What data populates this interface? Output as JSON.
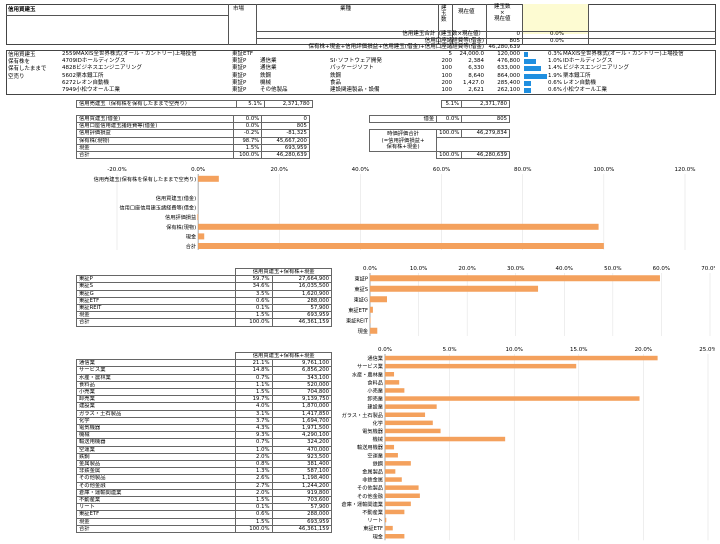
{
  "header": {
    "sheet_title": "信用買建玉",
    "col_market": "市場",
    "col_sector": "業種",
    "col_qty": "建\n玉\n数",
    "col_price": "現在値",
    "col_value": "建玉数\n×\n現在値"
  },
  "summary_rows": [
    {
      "label": "信用建玉合計（建玉数×現在値）",
      "value": "0",
      "pct": "0.0%"
    },
    {
      "label": "信用口座諸経費等(借金)",
      "value": "805",
      "pct": "0.0%"
    },
    {
      "label": "保有株+現金+信用評価損益+信用建玉(借金)+信用口座諸経費等(借金)",
      "value": "46,280,639",
      "pct": ""
    }
  ],
  "left_caption": [
    "信用買建玉",
    "保有株を",
    "保有したままで",
    "空売り"
  ],
  "holdings": [
    {
      "code": "2559",
      "name": "MAXIS全世界株式(オール・カントリー)上場投信",
      "market": "東証ETF",
      "sector": "",
      "sector2": "",
      "qty": "5",
      "price": "24,000.0",
      "value": "120,000",
      "pct": "0.3%",
      "name2": "MAXIS全世界株式(オール・カントリー)上場投信",
      "bar": 0.3
    },
    {
      "code": "4709",
      "name": "IDホールディングス",
      "market": "東証P",
      "sector": "通信業",
      "sector2": "SI･ソフトウェア開発",
      "qty": "200",
      "price": "2,384",
      "value": "476,800",
      "pct": "1.0%",
      "name2": "IDホールディングス",
      "bar": 1.0
    },
    {
      "code": "4828",
      "name": "ビジネスエンジニアリング",
      "market": "東証P",
      "sector": "通信業",
      "sector2": "パッケージソフト",
      "qty": "100",
      "price": "6,330",
      "value": "633,000",
      "pct": "1.4%",
      "name2": "ビジネスエンジニアリング",
      "bar": 1.4
    },
    {
      "code": "5602",
      "name": "栗本鐵工所",
      "market": "東証P",
      "sector": "鉄鋼",
      "sector2": "鉄鋼",
      "qty": "100",
      "price": "8,640",
      "value": "864,000",
      "pct": "1.9%",
      "name2": "栗本鐵工所",
      "bar": 1.9
    },
    {
      "code": "6272",
      "name": "レオン自動機",
      "market": "東証P",
      "sector": "機械",
      "sector2": "食品",
      "qty": "200",
      "price": "1,427.0",
      "value": "285,400",
      "pct": "0.6%",
      "name2": "レオン自動機",
      "bar": 0.6
    },
    {
      "code": "7949",
      "name": "小松ウオール工業",
      "market": "東証P",
      "sector": "その他製品",
      "sector2": "建設関連製品・設備",
      "qty": "100",
      "price": "2,621",
      "value": "262,100",
      "pct": "0.6%",
      "name2": "小松ウオール工業",
      "bar": 0.6
    }
  ],
  "short_row": {
    "label": "信用売建玉（保有株を保有したままで空売り）",
    "pct": "5.1%",
    "value": "2,371,780",
    "pct2": "5.1%",
    "value2": "2,371,780"
  },
  "balance": {
    "rows": [
      {
        "label": "信用買建玉(借金)",
        "pct": "0.0%",
        "value": "0"
      },
      {
        "label": "信用口座信用建玉諸経費等(借金)",
        "pct": "0.0%",
        "value": "805"
      },
      {
        "label": "信用評価損益",
        "pct": "-0.2%",
        "value": "-81,325"
      },
      {
        "label": "保有株(現物)",
        "pct": "98.7%",
        "value": "45,667,200"
      },
      {
        "label": "現金",
        "pct": "1.5%",
        "value": "693,959"
      },
      {
        "label": "合計",
        "pct": "100.0%",
        "value": "46,280,639"
      }
    ],
    "debt_label": "借金",
    "debt_pct": "0.0%",
    "debt_value": "805",
    "eval_label": "時価評価合計\n(=信用評価損益+\n保有株+現金)",
    "eval_pct": "100.0%",
    "eval_value": "46,279,834",
    "total_pct": "100.0%",
    "total_value": "46,280,639"
  },
  "chart1": {
    "ticks": [
      "-20.0%",
      "0.0%",
      "20.0%",
      "40.0%",
      "60.0%",
      "80.0%",
      "100.0%",
      "120.0%"
    ],
    "categories": [
      "信用売建玉(保有株を保有したままで空売り)",
      "",
      "信用買建玉(借金)",
      "信用口座信用建玉諸経費等(借金)",
      "信用評価損益",
      "保有株(現物)",
      "現金",
      "合計"
    ],
    "values": [
      5.1,
      0,
      0.0,
      0.0,
      -0.2,
      98.7,
      1.5,
      100.0
    ]
  },
  "market_table": {
    "header": "信用買建玉+保有株+現金",
    "rows": [
      {
        "label": "東証P",
        "pct": "59.7%",
        "value": "27,664,900"
      },
      {
        "label": "東証S",
        "pct": "34.6%",
        "value": "16,035,500"
      },
      {
        "label": "東証G",
        "pct": "3.5%",
        "value": "1,620,900"
      },
      {
        "label": "東証ETF",
        "pct": "0.6%",
        "value": "288,000"
      },
      {
        "label": "東証REIT",
        "pct": "0.1%",
        "value": "57,900"
      },
      {
        "label": "現金",
        "pct": "1.5%",
        "value": "693,959"
      },
      {
        "label": "合計",
        "pct": "100.0%",
        "value": "46,361,159"
      }
    ]
  },
  "chart2": {
    "ticks": [
      "0.0%",
      "10.0%",
      "20.0%",
      "30.0%",
      "40.0%",
      "50.0%",
      "60.0%",
      "70.0%"
    ],
    "categories": [
      "東証P",
      "東証S",
      "東証G",
      "東証ETF",
      "東証REIT",
      "現金"
    ],
    "values": [
      59.7,
      34.6,
      3.5,
      0.6,
      0.1,
      1.5
    ]
  },
  "sector_table": {
    "header": "信用買建玉+保有株+現金",
    "rows": [
      {
        "label": "通信業",
        "pct": "21.1%",
        "value": "9,761,100"
      },
      {
        "label": "サービス業",
        "pct": "14.8%",
        "value": "6,856,200"
      },
      {
        "label": "水産・農林業",
        "pct": "0.7%",
        "value": "343,100"
      },
      {
        "label": "食料品",
        "pct": "1.1%",
        "value": "520,000"
      },
      {
        "label": "小売業",
        "pct": "1.5%",
        "value": "704,800"
      },
      {
        "label": "卸売業",
        "pct": "19.7%",
        "value": "9,139,750"
      },
      {
        "label": "建設業",
        "pct": "4.0%",
        "value": "1,870,000"
      },
      {
        "label": "ガラス・土石製品",
        "pct": "3.1%",
        "value": "1,417,850"
      },
      {
        "label": "化学",
        "pct": "3.7%",
        "value": "1,694,700"
      },
      {
        "label": "電気機器",
        "pct": "4.3%",
        "value": "1,971,500"
      },
      {
        "label": "機械",
        "pct": "9.3%",
        "value": "4,290,100"
      },
      {
        "label": "輸送用機器",
        "pct": "0.7%",
        "value": "324,200"
      },
      {
        "label": "空運業",
        "pct": "1.0%",
        "value": "470,000"
      },
      {
        "label": "鉄鋼",
        "pct": "2.0%",
        "value": "923,500"
      },
      {
        "label": "金属製品",
        "pct": "0.8%",
        "value": "381,400"
      },
      {
        "label": "非鉄金属",
        "pct": "1.3%",
        "value": "587,100"
      },
      {
        "label": "その他製品",
        "pct": "2.6%",
        "value": "1,198,400"
      },
      {
        "label": "その他金融",
        "pct": "2.7%",
        "value": "1,244,200"
      },
      {
        "label": "倉庫・運輸関連業",
        "pct": "2.0%",
        "value": "919,800"
      },
      {
        "label": "不動産業",
        "pct": "1.5%",
        "value": "703,600"
      },
      {
        "label": "リート",
        "pct": "0.1%",
        "value": "57,900"
      },
      {
        "label": "東証ETF",
        "pct": "0.6%",
        "value": "288,000"
      },
      {
        "label": "現金",
        "pct": "1.5%",
        "value": "693,959"
      },
      {
        "label": "合計",
        "pct": "100.0%",
        "value": "46,361,159"
      }
    ]
  },
  "chart3": {
    "ticks": [
      "0.0%",
      "5.0%",
      "10.0%",
      "15.0%",
      "20.0%",
      "25.0%"
    ],
    "categories": [
      "通信業",
      "サービス業",
      "水産・農林業",
      "食料品",
      "小売業",
      "卸売業",
      "建設業",
      "ガラス・土石製品",
      "化学",
      "電気機器",
      "機械",
      "輸送用機器",
      "空運業",
      "鉄鋼",
      "金属製品",
      "非鉄金属",
      "その他製品",
      "その他金融",
      "倉庫・運輸関連業",
      "不動産業",
      "リート",
      "東証ETF",
      "現金"
    ],
    "values": [
      21.1,
      14.8,
      0.7,
      1.1,
      1.5,
      19.7,
      4.0,
      3.1,
      3.7,
      4.3,
      9.3,
      0.7,
      1.0,
      2.0,
      0.8,
      1.3,
      2.6,
      2.7,
      2.0,
      1.5,
      0.1,
      0.6,
      1.5
    ]
  },
  "colors": {
    "bar": "#f4a15d",
    "bar_blue": "#1f8fe0",
    "highlight": "#fdfbd2"
  }
}
